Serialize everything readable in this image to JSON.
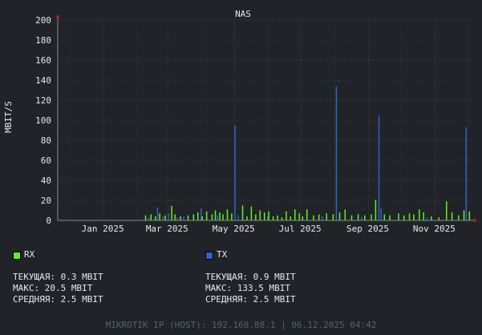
{
  "chart_data": {
    "type": "bar",
    "title": "NAS",
    "ylabel": "MBIT/S",
    "xlabel": "",
    "ylim": [
      0,
      200
    ],
    "yticks": [
      0,
      20,
      40,
      60,
      80,
      100,
      120,
      140,
      160,
      180,
      200
    ],
    "x_range": [
      "2024-11-20",
      "2025-12-06"
    ],
    "x_tick_labels": [
      {
        "date": "2025-01-01",
        "label": "Jan 2025"
      },
      {
        "date": "2025-03-01",
        "label": "Mar 2025"
      },
      {
        "date": "2025-05-01",
        "label": "May 2025"
      },
      {
        "date": "2025-07-01",
        "label": "Jul 2025"
      },
      {
        "date": "2025-09-01",
        "label": "Sep 2025"
      },
      {
        "date": "2025-11-01",
        "label": "Nov 2025"
      }
    ],
    "grid": true,
    "series": [
      {
        "name": "RX",
        "color": "#66ee22",
        "points": [
          [
            "2025-02-08",
            5
          ],
          [
            "2025-02-13",
            6
          ],
          [
            "2025-02-17",
            4
          ],
          [
            "2025-02-21",
            7
          ],
          [
            "2025-02-26",
            5
          ],
          [
            "2025-03-04",
            14.5
          ],
          [
            "2025-03-07",
            6
          ],
          [
            "2025-03-12",
            4
          ],
          [
            "2025-03-19",
            5
          ],
          [
            "2025-03-24",
            6
          ],
          [
            "2025-03-28",
            8
          ],
          [
            "2025-04-01",
            4
          ],
          [
            "2025-04-05",
            9
          ],
          [
            "2025-04-10",
            6
          ],
          [
            "2025-04-13",
            10
          ],
          [
            "2025-04-17",
            8
          ],
          [
            "2025-04-20",
            6
          ],
          [
            "2025-04-24",
            11
          ],
          [
            "2025-04-28",
            7
          ],
          [
            "2025-05-08",
            15
          ],
          [
            "2025-05-12",
            4
          ],
          [
            "2025-05-16",
            14
          ],
          [
            "2025-05-20",
            6
          ],
          [
            "2025-05-24",
            10
          ],
          [
            "2025-05-28",
            8
          ],
          [
            "2025-06-01",
            9
          ],
          [
            "2025-06-05",
            4
          ],
          [
            "2025-06-09",
            5
          ],
          [
            "2025-06-13",
            3
          ],
          [
            "2025-06-17",
            9
          ],
          [
            "2025-06-21",
            4
          ],
          [
            "2025-06-25",
            11
          ],
          [
            "2025-06-29",
            7
          ],
          [
            "2025-07-02",
            4
          ],
          [
            "2025-07-06",
            11
          ],
          [
            "2025-07-12",
            5
          ],
          [
            "2025-07-17",
            6
          ],
          [
            "2025-07-24",
            7
          ],
          [
            "2025-07-30",
            6
          ],
          [
            "2025-08-05",
            8
          ],
          [
            "2025-08-10",
            11
          ],
          [
            "2025-08-16",
            5
          ],
          [
            "2025-08-22",
            6
          ],
          [
            "2025-08-28",
            5
          ],
          [
            "2025-09-03",
            6
          ],
          [
            "2025-09-07",
            20.5
          ],
          [
            "2025-09-15",
            6
          ],
          [
            "2025-09-20",
            5
          ],
          [
            "2025-09-28",
            7
          ],
          [
            "2025-10-03",
            5
          ],
          [
            "2025-10-08",
            7
          ],
          [
            "2025-10-12",
            6
          ],
          [
            "2025-10-17",
            11
          ],
          [
            "2025-10-21",
            8
          ],
          [
            "2025-10-28",
            4
          ],
          [
            "2025-11-04",
            3
          ],
          [
            "2025-11-11",
            19
          ],
          [
            "2025-11-16",
            8
          ],
          [
            "2025-11-22",
            5
          ],
          [
            "2025-11-27",
            10
          ],
          [
            "2025-12-02",
            9
          ],
          [
            "2025-12-05",
            0.3
          ]
        ]
      },
      {
        "name": "TX",
        "color": "#2f62c4",
        "points": [
          [
            "2025-02-11",
            3
          ],
          [
            "2025-02-19",
            13
          ],
          [
            "2025-02-24",
            4
          ],
          [
            "2025-03-01",
            7
          ],
          [
            "2025-03-09",
            3
          ],
          [
            "2025-03-15",
            4
          ],
          [
            "2025-03-31",
            12
          ],
          [
            "2025-04-15",
            5
          ],
          [
            "2025-05-01",
            95
          ],
          [
            "2025-05-04",
            5
          ],
          [
            "2025-05-31",
            4
          ],
          [
            "2025-07-20",
            4
          ],
          [
            "2025-08-02",
            133.5
          ],
          [
            "2025-08-25",
            3
          ],
          [
            "2025-09-10",
            105
          ],
          [
            "2025-09-12",
            12
          ],
          [
            "2025-10-24",
            3
          ],
          [
            "2025-11-29",
            93
          ],
          [
            "2025-12-05",
            0.9
          ]
        ]
      }
    ]
  },
  "legend": {
    "rx": {
      "label": "RX",
      "color": "#66ee22",
      "current": "ТЕКУЩАЯ: 0.3 MBIT",
      "max": "МАКС: 20.5 MBIT",
      "avg": "СРЕДНЯЯ: 2.5 MBIT"
    },
    "tx": {
      "label": "TX",
      "color": "#2f62c4",
      "current": "ТЕКУЩАЯ: 0.9 MBIT",
      "max": "МАКС: 133.5 MBIT",
      "avg": "СРЕДНЯЯ: 2.5 MBIT"
    }
  },
  "footer": "MIKROTIK IP (HOST): 192.168.88.1 | 06.12.2025 04:42"
}
